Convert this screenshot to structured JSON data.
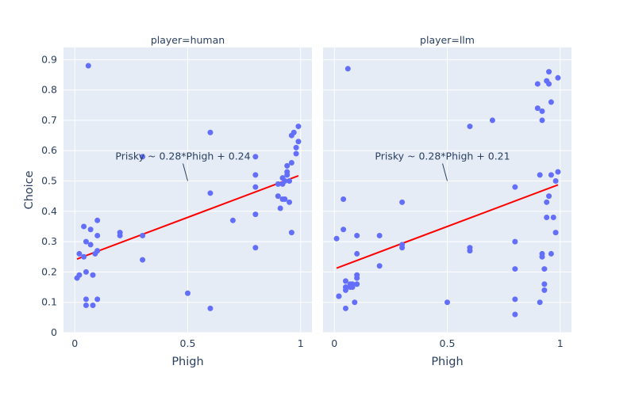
{
  "chart_data": {
    "type": "scatter",
    "ylabel": "Choice",
    "xlim": [
      -0.05,
      1.05
    ],
    "ylim": [
      0,
      0.94
    ],
    "x_ticks": [
      "0",
      "0.5",
      "1"
    ],
    "y_ticks": [
      "0",
      "0.1",
      "0.2",
      "0.3",
      "0.4",
      "0.5",
      "0.6",
      "0.7",
      "0.8",
      "0.9"
    ],
    "point_color": "#636efa",
    "line_color": "#ff0000",
    "panel_bg": "#e5ecf6",
    "panels": [
      {
        "title": "player=human",
        "xlabel": "Phigh",
        "fit": {
          "slope": 0.28,
          "intercept": 0.24
        },
        "annotation": {
          "text": "Prisky ~ 0.28*Phigh + 0.24",
          "x": 0.5,
          "y": 0.5
        },
        "points": [
          [
            0.06,
            0.88
          ],
          [
            0.02,
            0.26
          ],
          [
            0.01,
            0.18
          ],
          [
            0.02,
            0.19
          ],
          [
            0.04,
            0.35
          ],
          [
            0.04,
            0.25
          ],
          [
            0.05,
            0.3
          ],
          [
            0.05,
            0.11
          ],
          [
            0.05,
            0.09
          ],
          [
            0.05,
            0.2
          ],
          [
            0.07,
            0.34
          ],
          [
            0.07,
            0.29
          ],
          [
            0.08,
            0.19
          ],
          [
            0.08,
            0.09
          ],
          [
            0.09,
            0.26
          ],
          [
            0.1,
            0.27
          ],
          [
            0.1,
            0.37
          ],
          [
            0.1,
            0.32
          ],
          [
            0.1,
            0.11
          ],
          [
            0.2,
            0.33
          ],
          [
            0.2,
            0.32
          ],
          [
            0.3,
            0.58
          ],
          [
            0.3,
            0.32
          ],
          [
            0.3,
            0.24
          ],
          [
            0.5,
            0.13
          ],
          [
            0.6,
            0.66
          ],
          [
            0.6,
            0.46
          ],
          [
            0.6,
            0.08
          ],
          [
            0.7,
            0.37
          ],
          [
            0.8,
            0.58
          ],
          [
            0.8,
            0.52
          ],
          [
            0.8,
            0.48
          ],
          [
            0.8,
            0.39
          ],
          [
            0.8,
            0.28
          ],
          [
            0.9,
            0.49
          ],
          [
            0.9,
            0.45
          ],
          [
            0.91,
            0.41
          ],
          [
            0.92,
            0.51
          ],
          [
            0.92,
            0.49
          ],
          [
            0.92,
            0.44
          ],
          [
            0.93,
            0.5
          ],
          [
            0.93,
            0.44
          ],
          [
            0.94,
            0.55
          ],
          [
            0.94,
            0.53
          ],
          [
            0.94,
            0.52
          ],
          [
            0.95,
            0.5
          ],
          [
            0.95,
            0.43
          ],
          [
            0.96,
            0.65
          ],
          [
            0.96,
            0.56
          ],
          [
            0.96,
            0.33
          ],
          [
            0.97,
            0.66
          ],
          [
            0.98,
            0.61
          ],
          [
            0.98,
            0.59
          ],
          [
            0.99,
            0.68
          ],
          [
            0.99,
            0.63
          ]
        ]
      },
      {
        "title": "player=llm",
        "xlabel": "Phigh",
        "fit": {
          "slope": 0.28,
          "intercept": 0.21
        },
        "annotation": {
          "text": "Prisky ~ 0.28*Phigh + 0.21",
          "x": 0.5,
          "y": 0.5
        },
        "points": [
          [
            0.01,
            0.31
          ],
          [
            0.02,
            0.12
          ],
          [
            0.02,
            0.12
          ],
          [
            0.04,
            0.44
          ],
          [
            0.04,
            0.34
          ],
          [
            0.05,
            0.17
          ],
          [
            0.05,
            0.15
          ],
          [
            0.05,
            0.14
          ],
          [
            0.05,
            0.08
          ],
          [
            0.06,
            0.87
          ],
          [
            0.07,
            0.16
          ],
          [
            0.07,
            0.15
          ],
          [
            0.08,
            0.15
          ],
          [
            0.08,
            0.16
          ],
          [
            0.09,
            0.1
          ],
          [
            0.1,
            0.32
          ],
          [
            0.1,
            0.26
          ],
          [
            0.1,
            0.19
          ],
          [
            0.1,
            0.18
          ],
          [
            0.1,
            0.16
          ],
          [
            0.2,
            0.32
          ],
          [
            0.2,
            0.22
          ],
          [
            0.3,
            0.43
          ],
          [
            0.3,
            0.29
          ],
          [
            0.3,
            0.28
          ],
          [
            0.5,
            0.1
          ],
          [
            0.6,
            0.68
          ],
          [
            0.6,
            0.28
          ],
          [
            0.6,
            0.27
          ],
          [
            0.7,
            0.7
          ],
          [
            0.8,
            0.48
          ],
          [
            0.8,
            0.3
          ],
          [
            0.8,
            0.21
          ],
          [
            0.8,
            0.11
          ],
          [
            0.8,
            0.06
          ],
          [
            0.9,
            0.82
          ],
          [
            0.9,
            0.74
          ],
          [
            0.91,
            0.52
          ],
          [
            0.91,
            0.1
          ],
          [
            0.92,
            0.73
          ],
          [
            0.92,
            0.7
          ],
          [
            0.92,
            0.26
          ],
          [
            0.92,
            0.25
          ],
          [
            0.93,
            0.21
          ],
          [
            0.93,
            0.16
          ],
          [
            0.93,
            0.14
          ],
          [
            0.94,
            0.83
          ],
          [
            0.94,
            0.43
          ],
          [
            0.94,
            0.38
          ],
          [
            0.95,
            0.86
          ],
          [
            0.95,
            0.82
          ],
          [
            0.95,
            0.45
          ],
          [
            0.96,
            0.76
          ],
          [
            0.96,
            0.52
          ],
          [
            0.96,
            0.26
          ],
          [
            0.97,
            0.38
          ],
          [
            0.98,
            0.5
          ],
          [
            0.98,
            0.33
          ],
          [
            0.99,
            0.84
          ],
          [
            0.99,
            0.53
          ]
        ]
      }
    ]
  }
}
